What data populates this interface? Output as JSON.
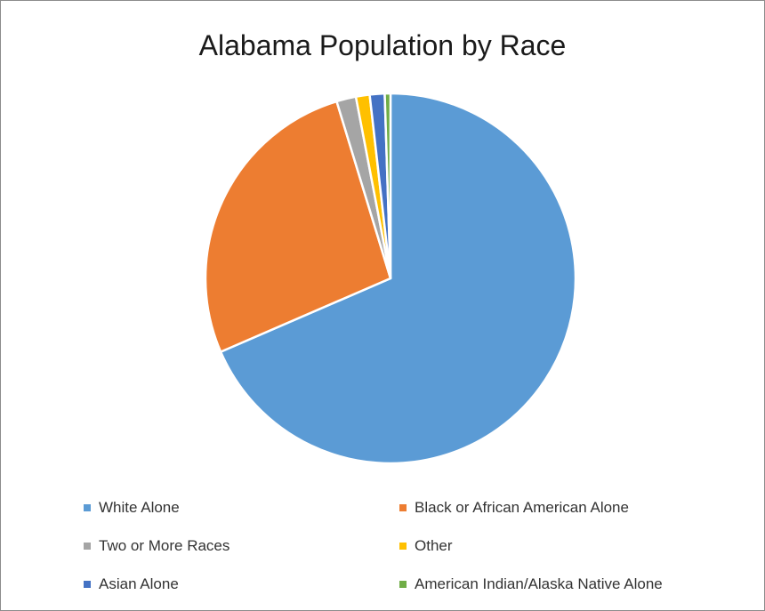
{
  "chart_data": {
    "type": "pie",
    "title": "Alabama Population by Race",
    "legend_position": "bottom",
    "slices": [
      {
        "label": "White Alone",
        "value": 68.5,
        "color": "#5b9bd5"
      },
      {
        "label": "Black or African American Alone",
        "value": 26.8,
        "color": "#ed7d31"
      },
      {
        "label": "Two or More Races",
        "value": 1.7,
        "color": "#a5a5a5"
      },
      {
        "label": "Other",
        "value": 1.2,
        "color": "#ffc000"
      },
      {
        "label": "Asian Alone",
        "value": 1.3,
        "color": "#4472c4"
      },
      {
        "label": "American Indian/Alaska Native Alone",
        "value": 0.5,
        "color": "#70ad47"
      }
    ]
  }
}
